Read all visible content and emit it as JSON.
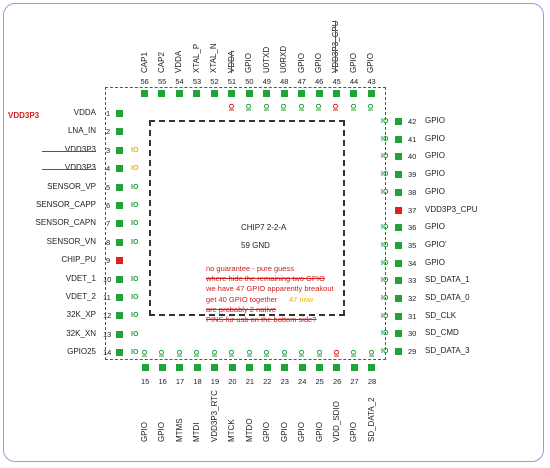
{
  "left_pins": [
    {
      "n": "1",
      "label": "VDDA",
      "pad": "green",
      "io": "",
      "strike": false
    },
    {
      "n": "2",
      "label": "LNA_IN",
      "pad": "green",
      "io": "",
      "strike": false
    },
    {
      "n": "3",
      "label": "VDD3P3",
      "pad": "green",
      "io": "IO",
      "io_color": "yellow",
      "strike": true
    },
    {
      "n": "4",
      "label": "VDD3P3",
      "pad": "green",
      "io": "IO",
      "io_color": "yellow",
      "strike": true
    },
    {
      "n": "5",
      "label": "SENSOR_VP",
      "pad": "green",
      "io": "IO",
      "io_color": "green",
      "strike": false
    },
    {
      "n": "6",
      "label": "SENSOR_CAPP",
      "pad": "green",
      "io": "IO",
      "io_color": "green",
      "strike": false
    },
    {
      "n": "7",
      "label": "SENSOR_CAPN",
      "pad": "green",
      "io": "IO",
      "io_color": "green",
      "strike": false
    },
    {
      "n": "8",
      "label": "SENSOR_VN",
      "pad": "green",
      "io": "IO",
      "io_color": "green",
      "strike": false
    },
    {
      "n": "9",
      "label": "CHIP_PU",
      "pad": "red",
      "io": "",
      "strike": false
    },
    {
      "n": "10",
      "label": "VDET_1",
      "pad": "green",
      "io": "IO",
      "io_color": "green",
      "strike": false
    },
    {
      "n": "11",
      "label": "VDET_2",
      "pad": "green",
      "io": "IO",
      "io_color": "green",
      "strike": false
    },
    {
      "n": "12",
      "label": "32K_XP",
      "pad": "green",
      "io": "IO",
      "io_color": "green",
      "strike": false
    },
    {
      "n": "13",
      "label": "32K_XN",
      "pad": "green",
      "io": "IO",
      "io_color": "green",
      "strike": false
    },
    {
      "n": "14",
      "label": "GPIO25",
      "pad": "green",
      "io": "IO",
      "io_color": "green",
      "strike": false
    }
  ],
  "right_pins": [
    {
      "n": "42",
      "label": "GPIO",
      "pad": "green",
      "io": "IO",
      "io_color": "green"
    },
    {
      "n": "41",
      "label": "GPIO",
      "pad": "green",
      "io": "IO",
      "io_color": "green"
    },
    {
      "n": "40",
      "label": "GPIO",
      "pad": "green",
      "io": "IO",
      "io_color": "green"
    },
    {
      "n": "39",
      "label": "GPIO",
      "pad": "green",
      "io": "IO",
      "io_color": "green"
    },
    {
      "n": "38",
      "label": "GPIO",
      "pad": "green",
      "io": "IO",
      "io_color": "green"
    },
    {
      "n": "37",
      "label": "VDD3P3_CPU",
      "pad": "red",
      "io": "",
      "io_color": "green"
    },
    {
      "n": "36",
      "label": "GPIO",
      "pad": "green",
      "io": "IO",
      "io_color": "green"
    },
    {
      "n": "35",
      "label": "GPIO'",
      "pad": "green",
      "io": "IO",
      "io_color": "green"
    },
    {
      "n": "34",
      "label": "GPIO",
      "pad": "green",
      "io": "IO",
      "io_color": "green"
    },
    {
      "n": "33",
      "label": "SD_DATA_1",
      "pad": "green",
      "io": "IO",
      "io_color": "green"
    },
    {
      "n": "32",
      "label": "SD_DATA_0",
      "pad": "green",
      "io": "IO",
      "io_color": "green"
    },
    {
      "n": "31",
      "label": "SD_CLK",
      "pad": "green",
      "io": "IO",
      "io_color": "green"
    },
    {
      "n": "30",
      "label": "SD_CMD",
      "pad": "green",
      "io": "IO",
      "io_color": "green"
    },
    {
      "n": "29",
      "label": "SD_DATA_3",
      "pad": "green",
      "io": "IO",
      "io_color": "green"
    }
  ],
  "top_pins": [
    {
      "n": "56",
      "label": "CAP1",
      "pad": "green",
      "io": "",
      "io_color": "green",
      "strike": false
    },
    {
      "n": "55",
      "label": "CAP2",
      "pad": "green",
      "io": "",
      "io_color": "green",
      "strike": false
    },
    {
      "n": "54",
      "label": "VDDA",
      "pad": "green",
      "io": "",
      "io_color": "green",
      "strike": false
    },
    {
      "n": "53",
      "label": "XTAL_P",
      "pad": "green",
      "io": "",
      "io_color": "green",
      "strike": false
    },
    {
      "n": "52",
      "label": "XTAL_N",
      "pad": "green",
      "io": "",
      "io_color": "green",
      "strike": false
    },
    {
      "n": "51",
      "label": "VDDA",
      "pad": "green",
      "io": "IO",
      "io_color": "red",
      "strike": true
    },
    {
      "n": "50",
      "label": "GPIO",
      "pad": "green",
      "io": "IO",
      "io_color": "green",
      "strike": false
    },
    {
      "n": "49",
      "label": "U0TXD",
      "pad": "green",
      "io": "IO",
      "io_color": "green",
      "strike": false
    },
    {
      "n": "48",
      "label": "U0RXD",
      "pad": "green",
      "io": "IO",
      "io_color": "green",
      "strike": false
    },
    {
      "n": "47",
      "label": "GPIO",
      "pad": "green",
      "io": "IO",
      "io_color": "green",
      "strike": false
    },
    {
      "n": "46",
      "label": "GPIO",
      "pad": "green",
      "io": "IO",
      "io_color": "green",
      "strike": false
    },
    {
      "n": "45",
      "label": "VDD3P3_CPU",
      "pad": "green",
      "io": "IO",
      "io_color": "red",
      "strike": true
    },
    {
      "n": "44",
      "label": "GPIO",
      "pad": "green",
      "io": "IO",
      "io_color": "green",
      "strike": false
    },
    {
      "n": "43",
      "label": "GPIO",
      "pad": "green",
      "io": "IO",
      "io_color": "green",
      "strike": false
    }
  ],
  "bottom_pins": [
    {
      "n": "15",
      "label": "GPIO",
      "pad": "green",
      "io": "IO",
      "io_color": "green"
    },
    {
      "n": "16",
      "label": "GPIO",
      "pad": "green",
      "io": "IO",
      "io_color": "green"
    },
    {
      "n": "17",
      "label": "MTMS",
      "pad": "green",
      "io": "IO",
      "io_color": "green"
    },
    {
      "n": "18",
      "label": "MTDI",
      "pad": "green",
      "io": "IO",
      "io_color": "green"
    },
    {
      "n": "19",
      "label": "VDD3P3_RTC",
      "pad": "green",
      "io": "IO",
      "io_color": "green"
    },
    {
      "n": "20",
      "label": "MTCK",
      "pad": "green",
      "io": "IO",
      "io_color": "green"
    },
    {
      "n": "21",
      "label": "MTDO",
      "pad": "green",
      "io": "IO",
      "io_color": "green"
    },
    {
      "n": "22",
      "label": "GPIO",
      "pad": "green",
      "io": "IO",
      "io_color": "green"
    },
    {
      "n": "23",
      "label": "GPIO",
      "pad": "green",
      "io": "IO",
      "io_color": "green"
    },
    {
      "n": "24",
      "label": "GPIO",
      "pad": "green",
      "io": "IO",
      "io_color": "green"
    },
    {
      "n": "25",
      "label": "GPIO",
      "pad": "green",
      "io": "IO",
      "io_color": "green"
    },
    {
      "n": "26",
      "label": "VDD_SDIO",
      "pad": "green",
      "io": "IO",
      "io_color": "red"
    },
    {
      "n": "27",
      "label": "GPIO",
      "pad": "green",
      "io": "IO",
      "io_color": "green"
    },
    {
      "n": "28",
      "label": "SD_DATA_2",
      "pad": "green",
      "io": "IO",
      "io_color": "green"
    }
  ],
  "vdd3p3_red_label": "VDD3P3",
  "chip_name": "CHIP7 2-2-A",
  "gnd": "59  GND",
  "annotations": [
    {
      "text": "no guarantee - pure guess",
      "color": "#d02020",
      "strike": false
    },
    {
      "text": "where hide the remaining two GPIO",
      "color": "#d02020",
      "strike": true
    },
    {
      "text": "we have 47 GPIO apparently breakout",
      "color": "#d02020",
      "strike": false
    },
    {
      "text": "get 40 GPIO together",
      "color": "#d02020",
      "strike": false
    },
    {
      "text": "are probably 2 native",
      "color": "#d02020",
      "strike": true
    },
    {
      "text": "PINS fur usb on the bottom side?",
      "color": "#d02020",
      "strike": true
    }
  ],
  "annotation_extra": "47 now",
  "colors": {
    "green": "#22a33a",
    "red": "#e02020",
    "yellow": "#e8b400",
    "strike": "#d02020"
  }
}
